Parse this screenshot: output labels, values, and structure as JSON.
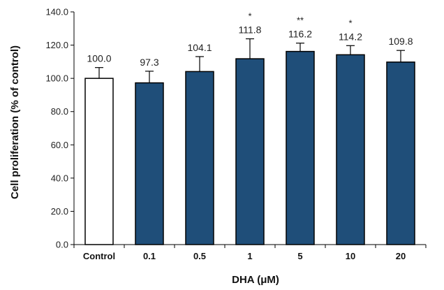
{
  "chart_data": {
    "type": "bar",
    "title": "",
    "xlabel": "DHA (μM)",
    "ylabel": "Cell proliferation (% of control)",
    "ylim": [
      0,
      140
    ],
    "yticks": [
      "0.0",
      "20.0",
      "40.0",
      "60.0",
      "80.0",
      "100.0",
      "120.0",
      "140.0"
    ],
    "ytick_values": [
      0,
      20,
      40,
      60,
      80,
      100,
      120,
      140
    ],
    "categories": [
      "Control",
      "0.1",
      "0.5",
      "1",
      "5",
      "10",
      "20"
    ],
    "values": [
      100.0,
      97.3,
      104.1,
      111.8,
      116.2,
      114.2,
      109.8
    ],
    "value_labels": [
      "100.0",
      "97.3",
      "104.1",
      "111.8",
      "116.2",
      "114.2",
      "109.8"
    ],
    "error_upper": [
      6.5,
      7.0,
      9.0,
      12.0,
      5.0,
      5.5,
      7.0
    ],
    "significance": [
      "",
      "",
      "",
      "*",
      "**",
      "*",
      ""
    ],
    "bar_fills": [
      "#ffffff",
      "#1f4e79",
      "#1f4e79",
      "#1f4e79",
      "#1f4e79",
      "#1f4e79",
      "#1f4e79"
    ],
    "grid": false,
    "legend": "none"
  }
}
